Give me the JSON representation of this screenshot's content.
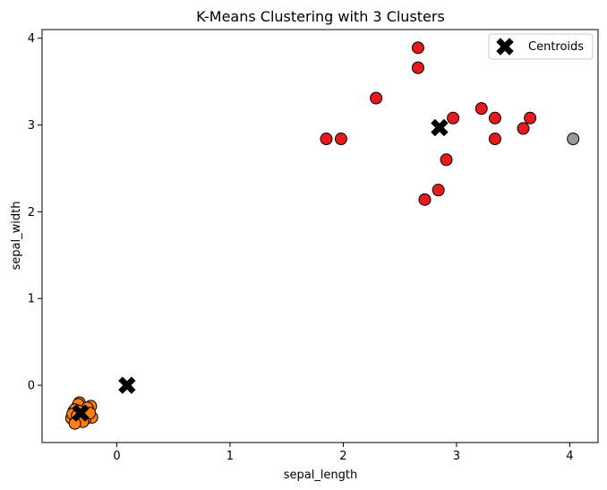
{
  "chart_data": {
    "type": "scatter",
    "title": "K-Means Clustering with 3 Clusters",
    "xlabel": "sepal_length",
    "ylabel": "sepal_width",
    "xlim": [
      -0.66,
      4.25
    ],
    "ylim": [
      -0.66,
      4.1
    ],
    "x_ticks": [
      0,
      1,
      2,
      3,
      4
    ],
    "y_ticks": [
      0,
      1,
      2,
      3,
      4
    ],
    "grid": false,
    "legend": {
      "position": "upper-right",
      "entries": [
        "Centroids"
      ]
    },
    "colors": {
      "cluster_orange": "#ff7f0e",
      "cluster_red": "#e41a1c",
      "cluster_gray": "#999999",
      "centroid": "#000000",
      "marker_edge": "#000000"
    },
    "series": [
      {
        "cluster": 0,
        "color": "#ff7f0e",
        "x": [
          -0.38,
          -0.35,
          -0.33,
          -0.3,
          -0.28,
          -0.25,
          -0.4,
          -0.36,
          -0.31,
          -0.27,
          -0.23,
          -0.34,
          -0.29,
          -0.37,
          -0.32,
          -0.26,
          -0.22,
          -0.39,
          -0.33,
          -0.28,
          -0.35,
          -0.3,
          -0.24,
          -0.37
        ],
        "y": [
          -0.3,
          -0.25,
          -0.2,
          -0.32,
          -0.28,
          -0.35,
          -0.38,
          -0.4,
          -0.36,
          -0.3,
          -0.24,
          -0.22,
          -0.34,
          -0.28,
          -0.38,
          -0.26,
          -0.37,
          -0.33,
          -0.3,
          -0.39,
          -0.35,
          -0.42,
          -0.32,
          -0.44
        ]
      },
      {
        "cluster": 1,
        "color": "#e41a1c",
        "x": [
          2.66,
          2.66,
          2.29,
          1.85,
          1.98,
          2.97,
          3.22,
          3.34,
          3.34,
          3.59,
          3.65,
          2.91,
          2.84,
          2.72
        ],
        "y": [
          3.89,
          3.66,
          3.31,
          2.84,
          2.84,
          3.08,
          3.19,
          3.08,
          2.84,
          2.96,
          3.08,
          2.6,
          2.25,
          2.14
        ]
      },
      {
        "cluster": 2,
        "color": "#999999",
        "x": [
          4.03
        ],
        "y": [
          2.84
        ]
      }
    ],
    "centroids": {
      "name": "Centroids",
      "x": [
        -0.32,
        0.09,
        2.85
      ],
      "y": [
        -0.32,
        0.0,
        2.97
      ]
    }
  }
}
